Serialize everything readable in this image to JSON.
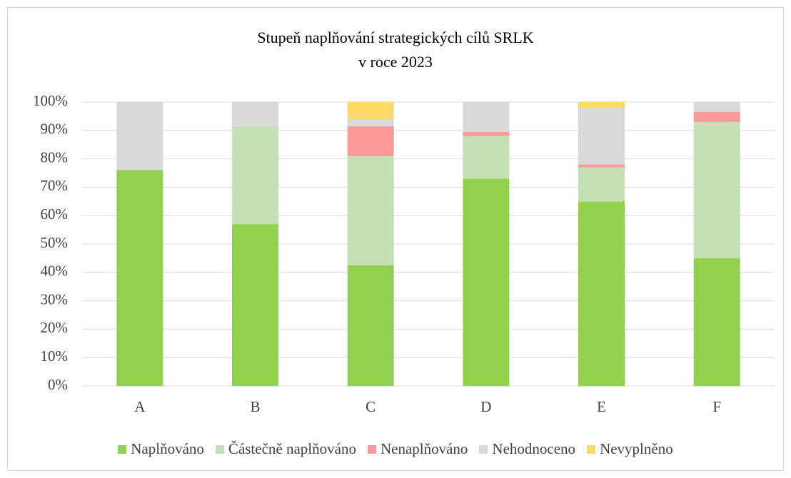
{
  "chart_data": {
    "type": "stacked_bar",
    "title": "Stupeň naplňování strategických cílů SRLK\nv roce 2023",
    "categories": [
      "A",
      "B",
      "C",
      "D",
      "E",
      "F"
    ],
    "series": [
      {
        "name": "Naplňováno",
        "color": "#92d050",
        "values": [
          76,
          57,
          42.5,
          73,
          65,
          45
        ]
      },
      {
        "name": "Částečně naplňováno",
        "color": "#c5e0b4",
        "values": [
          0,
          34.5,
          38.5,
          15,
          12,
          48
        ]
      },
      {
        "name": "Nenaplňováno",
        "color": "#ff9999",
        "values": [
          0,
          0,
          10.5,
          1.5,
          1,
          3.5
        ]
      },
      {
        "name": "Nehodnoceno",
        "color": "#d9d9d9",
        "values": [
          24,
          8.5,
          2.5,
          10.5,
          20,
          3.5
        ]
      },
      {
        "name": "Nevyplněno",
        "color": "#ffd966",
        "values": [
          0,
          0,
          6,
          0,
          2,
          0
        ]
      }
    ],
    "ylim": [
      0,
      100
    ],
    "yticks": [
      {
        "value": 0,
        "label": "0%"
      },
      {
        "value": 10,
        "label": "10%"
      },
      {
        "value": 20,
        "label": "20%"
      },
      {
        "value": 30,
        "label": "30%"
      },
      {
        "value": 40,
        "label": "40%"
      },
      {
        "value": 50,
        "label": "50%"
      },
      {
        "value": 60,
        "label": "60%"
      },
      {
        "value": 70,
        "label": "70%"
      },
      {
        "value": 80,
        "label": "80%"
      },
      {
        "value": 90,
        "label": "90%"
      },
      {
        "value": 100,
        "label": "100%"
      }
    ],
    "grid": true,
    "legend": "bottom"
  }
}
